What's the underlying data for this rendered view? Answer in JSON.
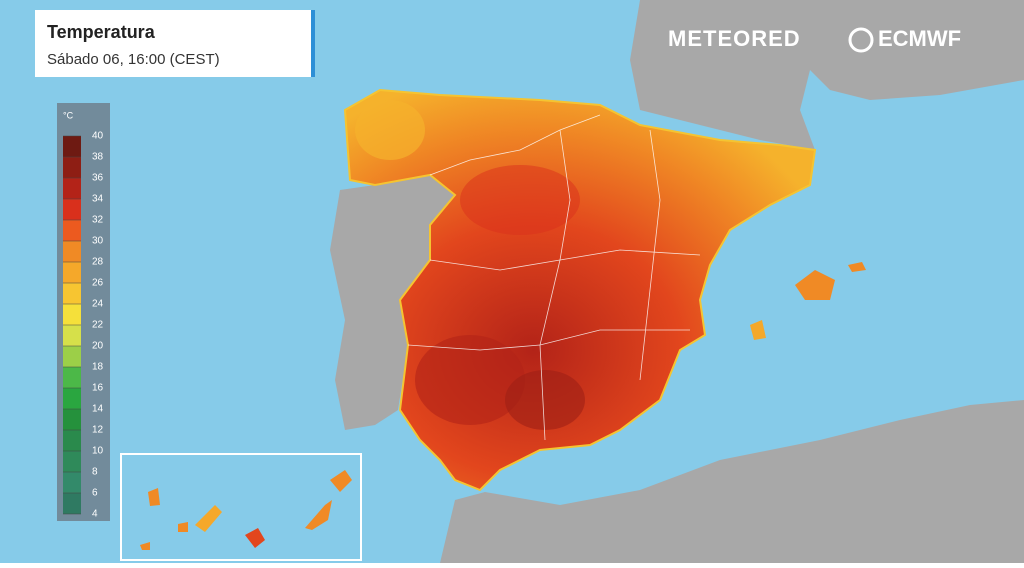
{
  "header": {
    "title": "Temperatura",
    "subtitle": "Sábado 06, 16:00 (CEST)"
  },
  "legend": {
    "unit": "°C",
    "ticks": [
      40,
      38,
      36,
      34,
      32,
      30,
      28,
      26,
      24,
      22,
      20,
      18,
      16,
      14,
      12,
      10,
      8,
      6,
      4
    ],
    "colors": [
      "#6e1a12",
      "#8e1e14",
      "#b32318",
      "#d9301c",
      "#ec5a1f",
      "#f08a25",
      "#f5a82a",
      "#f7c531",
      "#f5e03a",
      "#d6e04a",
      "#9ccf48",
      "#4cb848",
      "#2aa640",
      "#25913c",
      "#2a8a4c",
      "#2f8a5a",
      "#338a6a",
      "#2f7a62"
    ]
  },
  "brands": {
    "meteored": "METEORED",
    "ecmwf": "ECMWF"
  }
}
